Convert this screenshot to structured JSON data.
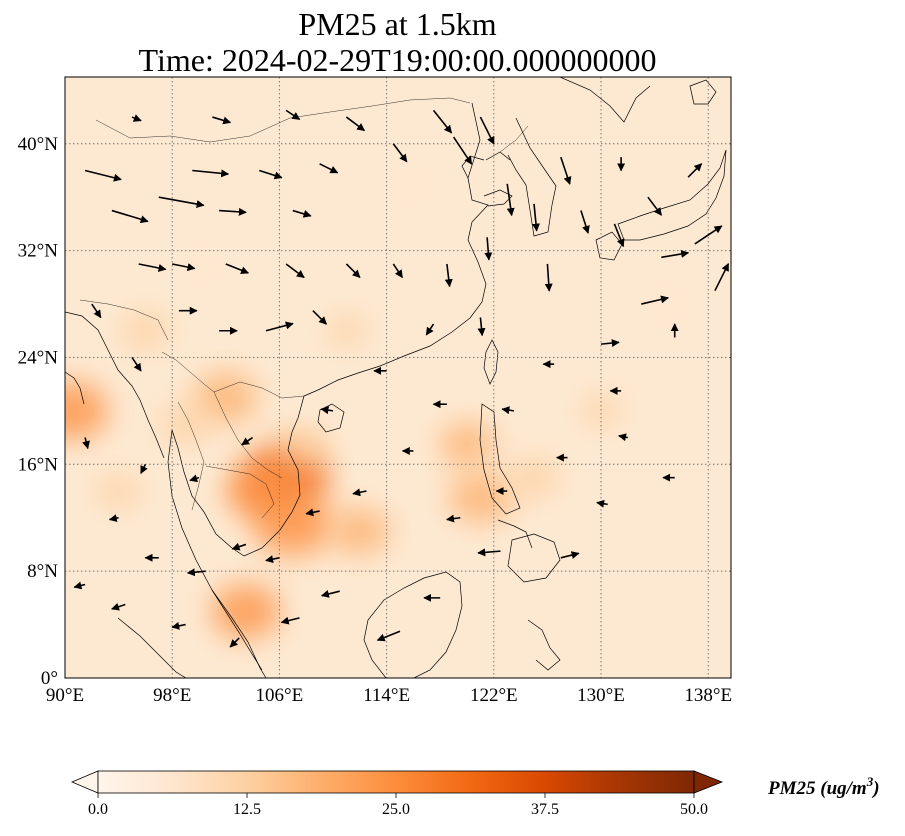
{
  "title_line1": "PM25 at 1.5km",
  "title_line2": "Time: 2024-02-29T19:00:00.000000000",
  "colorbar": {
    "label": "PM25 (ug/m",
    "label_sup": "3",
    "label_close": ")",
    "ticks": [
      "0.0",
      "12.5",
      "25.0",
      "37.5",
      "50.0"
    ],
    "colors": [
      "#fff5eb",
      "#fee6ce",
      "#fdd0a2",
      "#fdae6b",
      "#fd8d3c",
      "#f16913",
      "#d94801",
      "#a63603",
      "#7f2704"
    ]
  },
  "chart_data": {
    "type": "heatmap",
    "title": "PM25 at 1.5km\nTime: 2024-02-29T19:00:00.000000000",
    "xlabel": "",
    "ylabel": "",
    "x_ticks": [
      "90°E",
      "98°E",
      "106°E",
      "114°E",
      "122°E",
      "130°E",
      "138°E"
    ],
    "y_ticks": [
      "0°",
      "8°N",
      "16°N",
      "24°N",
      "32°N",
      "40°N"
    ],
    "x_tick_values": [
      90,
      98,
      106,
      114,
      122,
      130,
      138
    ],
    "y_tick_values": [
      0,
      8,
      16,
      24,
      32,
      40
    ],
    "xlim": [
      90,
      139.7
    ],
    "ylim": [
      0,
      45
    ],
    "grid": true,
    "colorbar_range": [
      0,
      50
    ],
    "hotspots": [
      {
        "lon": 106.5,
        "lat": 15.0,
        "value": 30
      },
      {
        "lon": 107.0,
        "lat": 11.5,
        "value": 27
      },
      {
        "lon": 104.5,
        "lat": 14.0,
        "value": 22
      },
      {
        "lon": 102.0,
        "lat": 21.0,
        "value": 20
      },
      {
        "lon": 90.5,
        "lat": 20.0,
        "value": 24
      },
      {
        "lon": 103.5,
        "lat": 5.0,
        "value": 22
      },
      {
        "lon": 121.0,
        "lat": 13.5,
        "value": 20
      },
      {
        "lon": 120.0,
        "lat": 17.5,
        "value": 16
      },
      {
        "lon": 112.0,
        "lat": 11.0,
        "value": 18
      },
      {
        "lon": 96.0,
        "lat": 26.0,
        "value": 14
      },
      {
        "lon": 125.0,
        "lat": 15.0,
        "value": 15
      },
      {
        "lon": 99.0,
        "lat": 19.0,
        "value": 15
      },
      {
        "lon": 94.0,
        "lat": 14.0,
        "value": 12
      },
      {
        "lon": 111.0,
        "lat": 26.0,
        "value": 10
      },
      {
        "lon": 108.0,
        "lat": 17.5,
        "value": 12
      },
      {
        "lon": 130.0,
        "lat": 20.0,
        "value": 10
      },
      {
        "lon": 100.0,
        "lat": 31.0,
        "value": 8
      },
      {
        "lon": 116.0,
        "lat": 37.0,
        "value": 8
      },
      {
        "lon": 135.0,
        "lat": 28.0,
        "value": 7
      }
    ],
    "wind_vectors": [
      {
        "lon": 91.5,
        "lat": 38,
        "u": 4,
        "v": -1
      },
      {
        "lon": 93.5,
        "lat": 35,
        "u": 4,
        "v": -1.2
      },
      {
        "lon": 95.5,
        "lat": 31,
        "u": 3,
        "v": -0.6
      },
      {
        "lon": 97.0,
        "lat": 36,
        "u": 5,
        "v": -0.9
      },
      {
        "lon": 99.5,
        "lat": 38,
        "u": 4,
        "v": -0.4
      },
      {
        "lon": 101.5,
        "lat": 35,
        "u": 3,
        "v": -0.2
      },
      {
        "lon": 104.5,
        "lat": 38,
        "u": 2.5,
        "v": -0.8
      },
      {
        "lon": 107.0,
        "lat": 35,
        "u": 2,
        "v": -0.6
      },
      {
        "lon": 109.0,
        "lat": 38.5,
        "u": 2,
        "v": -1
      },
      {
        "lon": 111.0,
        "lat": 42,
        "u": 2,
        "v": -1.5
      },
      {
        "lon": 114.5,
        "lat": 40,
        "u": 1.5,
        "v": -2
      },
      {
        "lon": 117.5,
        "lat": 42.5,
        "u": 2,
        "v": -2.5
      },
      {
        "lon": 119.0,
        "lat": 40.5,
        "u": 2,
        "v": -3
      },
      {
        "lon": 121.0,
        "lat": 42,
        "u": 1.5,
        "v": -3
      },
      {
        "lon": 123.0,
        "lat": 37,
        "u": 0.5,
        "v": -3.5
      },
      {
        "lon": 125.0,
        "lat": 35.5,
        "u": 0.3,
        "v": -3
      },
      {
        "lon": 127.0,
        "lat": 39,
        "u": 1,
        "v": -3
      },
      {
        "lon": 128.5,
        "lat": 35,
        "u": 0.8,
        "v": -2.5
      },
      {
        "lon": 126.0,
        "lat": 31,
        "u": 0.2,
        "v": -3
      },
      {
        "lon": 121.5,
        "lat": 33,
        "u": 0.2,
        "v": -2.5
      },
      {
        "lon": 118.5,
        "lat": 31,
        "u": 0.3,
        "v": -2.5
      },
      {
        "lon": 114.5,
        "lat": 31,
        "u": 1,
        "v": -1.5
      },
      {
        "lon": 111.0,
        "lat": 31,
        "u": 1.5,
        "v": -1.5
      },
      {
        "lon": 108.5,
        "lat": 27.5,
        "u": 1.5,
        "v": -1.5
      },
      {
        "lon": 105.0,
        "lat": 26,
        "u": 3,
        "v": 0.8
      },
      {
        "lon": 101.5,
        "lat": 26,
        "u": 2,
        "v": 0
      },
      {
        "lon": 98.5,
        "lat": 27.5,
        "u": 2,
        "v": 0
      },
      {
        "lon": 95.0,
        "lat": 24,
        "u": 1,
        "v": -1.5
      },
      {
        "lon": 92.0,
        "lat": 28,
        "u": 1,
        "v": -1.5
      },
      {
        "lon": 91.5,
        "lat": 18,
        "u": 0.3,
        "v": -1.2
      },
      {
        "lon": 94.0,
        "lat": 12,
        "u": -1,
        "v": -0.2
      },
      {
        "lon": 97.0,
        "lat": 9,
        "u": -1.5,
        "v": 0
      },
      {
        "lon": 100.5,
        "lat": 8,
        "u": -2,
        "v": -0.2
      },
      {
        "lon": 103.5,
        "lat": 10,
        "u": -1.5,
        "v": -0.5
      },
      {
        "lon": 106.0,
        "lat": 9,
        "u": -1.5,
        "v": -0.3
      },
      {
        "lon": 109.0,
        "lat": 12.5,
        "u": -1.5,
        "v": -0.3
      },
      {
        "lon": 112.5,
        "lat": 14,
        "u": -1.5,
        "v": -0.3
      },
      {
        "lon": 116.0,
        "lat": 17,
        "u": -1.2,
        "v": 0
      },
      {
        "lon": 119.5,
        "lat": 12,
        "u": -1.5,
        "v": -0.2
      },
      {
        "lon": 123.0,
        "lat": 14,
        "u": -1.2,
        "v": 0
      },
      {
        "lon": 127.5,
        "lat": 16.5,
        "u": -1.2,
        "v": 0
      },
      {
        "lon": 132.0,
        "lat": 18,
        "u": -1,
        "v": 0.2
      },
      {
        "lon": 130.0,
        "lat": 25,
        "u": 2,
        "v": 0.2
      },
      {
        "lon": 133.0,
        "lat": 28,
        "u": 3,
        "v": 0.7
      },
      {
        "lon": 134.5,
        "lat": 31.5,
        "u": 3,
        "v": 0.5
      },
      {
        "lon": 137.0,
        "lat": 32.5,
        "u": 3,
        "v": 2
      },
      {
        "lon": 138.5,
        "lat": 29,
        "u": 1.5,
        "v": 3
      },
      {
        "lon": 135.5,
        "lat": 25.5,
        "u": 0,
        "v": 1.5
      },
      {
        "lon": 133.5,
        "lat": 36,
        "u": 1.5,
        "v": -2
      },
      {
        "lon": 131.0,
        "lat": 34,
        "u": 1,
        "v": -2.5
      },
      {
        "lon": 136.5,
        "lat": 37.5,
        "u": 1.5,
        "v": 1.5
      },
      {
        "lon": 127.0,
        "lat": 9,
        "u": 2,
        "v": 0.5
      },
      {
        "lon": 122.5,
        "lat": 9.5,
        "u": -2.5,
        "v": -0.2
      },
      {
        "lon": 118.0,
        "lat": 6,
        "u": -1.8,
        "v": 0
      },
      {
        "lon": 115.0,
        "lat": 3.5,
        "u": -2.5,
        "v": -1
      },
      {
        "lon": 110.5,
        "lat": 6.5,
        "u": -2,
        "v": -0.5
      },
      {
        "lon": 107.5,
        "lat": 4.5,
        "u": -2,
        "v": -0.5
      },
      {
        "lon": 103.0,
        "lat": 3,
        "u": -1,
        "v": -1
      },
      {
        "lon": 99.0,
        "lat": 4,
        "u": -1.5,
        "v": -0.3
      },
      {
        "lon": 94.5,
        "lat": 5.5,
        "u": -1.5,
        "v": -0.5
      },
      {
        "lon": 91.5,
        "lat": 7,
        "u": -1.2,
        "v": -0.3
      },
      {
        "lon": 96.0,
        "lat": 16,
        "u": -0.5,
        "v": -1
      },
      {
        "lon": 100.0,
        "lat": 15,
        "u": -1,
        "v": -0.3
      },
      {
        "lon": 104.0,
        "lat": 18,
        "u": -1.2,
        "v": -0.8
      },
      {
        "lon": 110.0,
        "lat": 20,
        "u": -1.3,
        "v": 0.2
      },
      {
        "lon": 114.0,
        "lat": 23,
        "u": -1.4,
        "v": 0
      },
      {
        "lon": 118.5,
        "lat": 20.5,
        "u": -1.5,
        "v": 0
      },
      {
        "lon": 123.5,
        "lat": 20,
        "u": -1.3,
        "v": 0.2
      },
      {
        "lon": 126.5,
        "lat": 23.5,
        "u": -1.2,
        "v": 0
      },
      {
        "lon": 121.0,
        "lat": 27,
        "u": 0.2,
        "v": -2
      },
      {
        "lon": 117.5,
        "lat": 26.5,
        "u": -0.8,
        "v": -1.2
      },
      {
        "lon": 131.5,
        "lat": 39,
        "u": 0,
        "v": -1.5
      },
      {
        "lon": 131.5,
        "lat": 21.5,
        "u": -1.2,
        "v": 0
      },
      {
        "lon": 135.5,
        "lat": 15,
        "u": -1.3,
        "v": 0
      },
      {
        "lon": 130.5,
        "lat": 13,
        "u": -1.2,
        "v": 0.2
      },
      {
        "lon": 106.5,
        "lat": 31,
        "u": 2,
        "v": -1.5
      },
      {
        "lon": 102.0,
        "lat": 31,
        "u": 2.5,
        "v": -1
      },
      {
        "lon": 98.0,
        "lat": 31,
        "u": 2.5,
        "v": -0.5
      },
      {
        "lon": 95.0,
        "lat": 42,
        "u": 1,
        "v": -0.4
      },
      {
        "lon": 101.0,
        "lat": 42,
        "u": 2,
        "v": -0.6
      },
      {
        "lon": 106.5,
        "lat": 42.5,
        "u": 1.5,
        "v": -1
      }
    ]
  }
}
